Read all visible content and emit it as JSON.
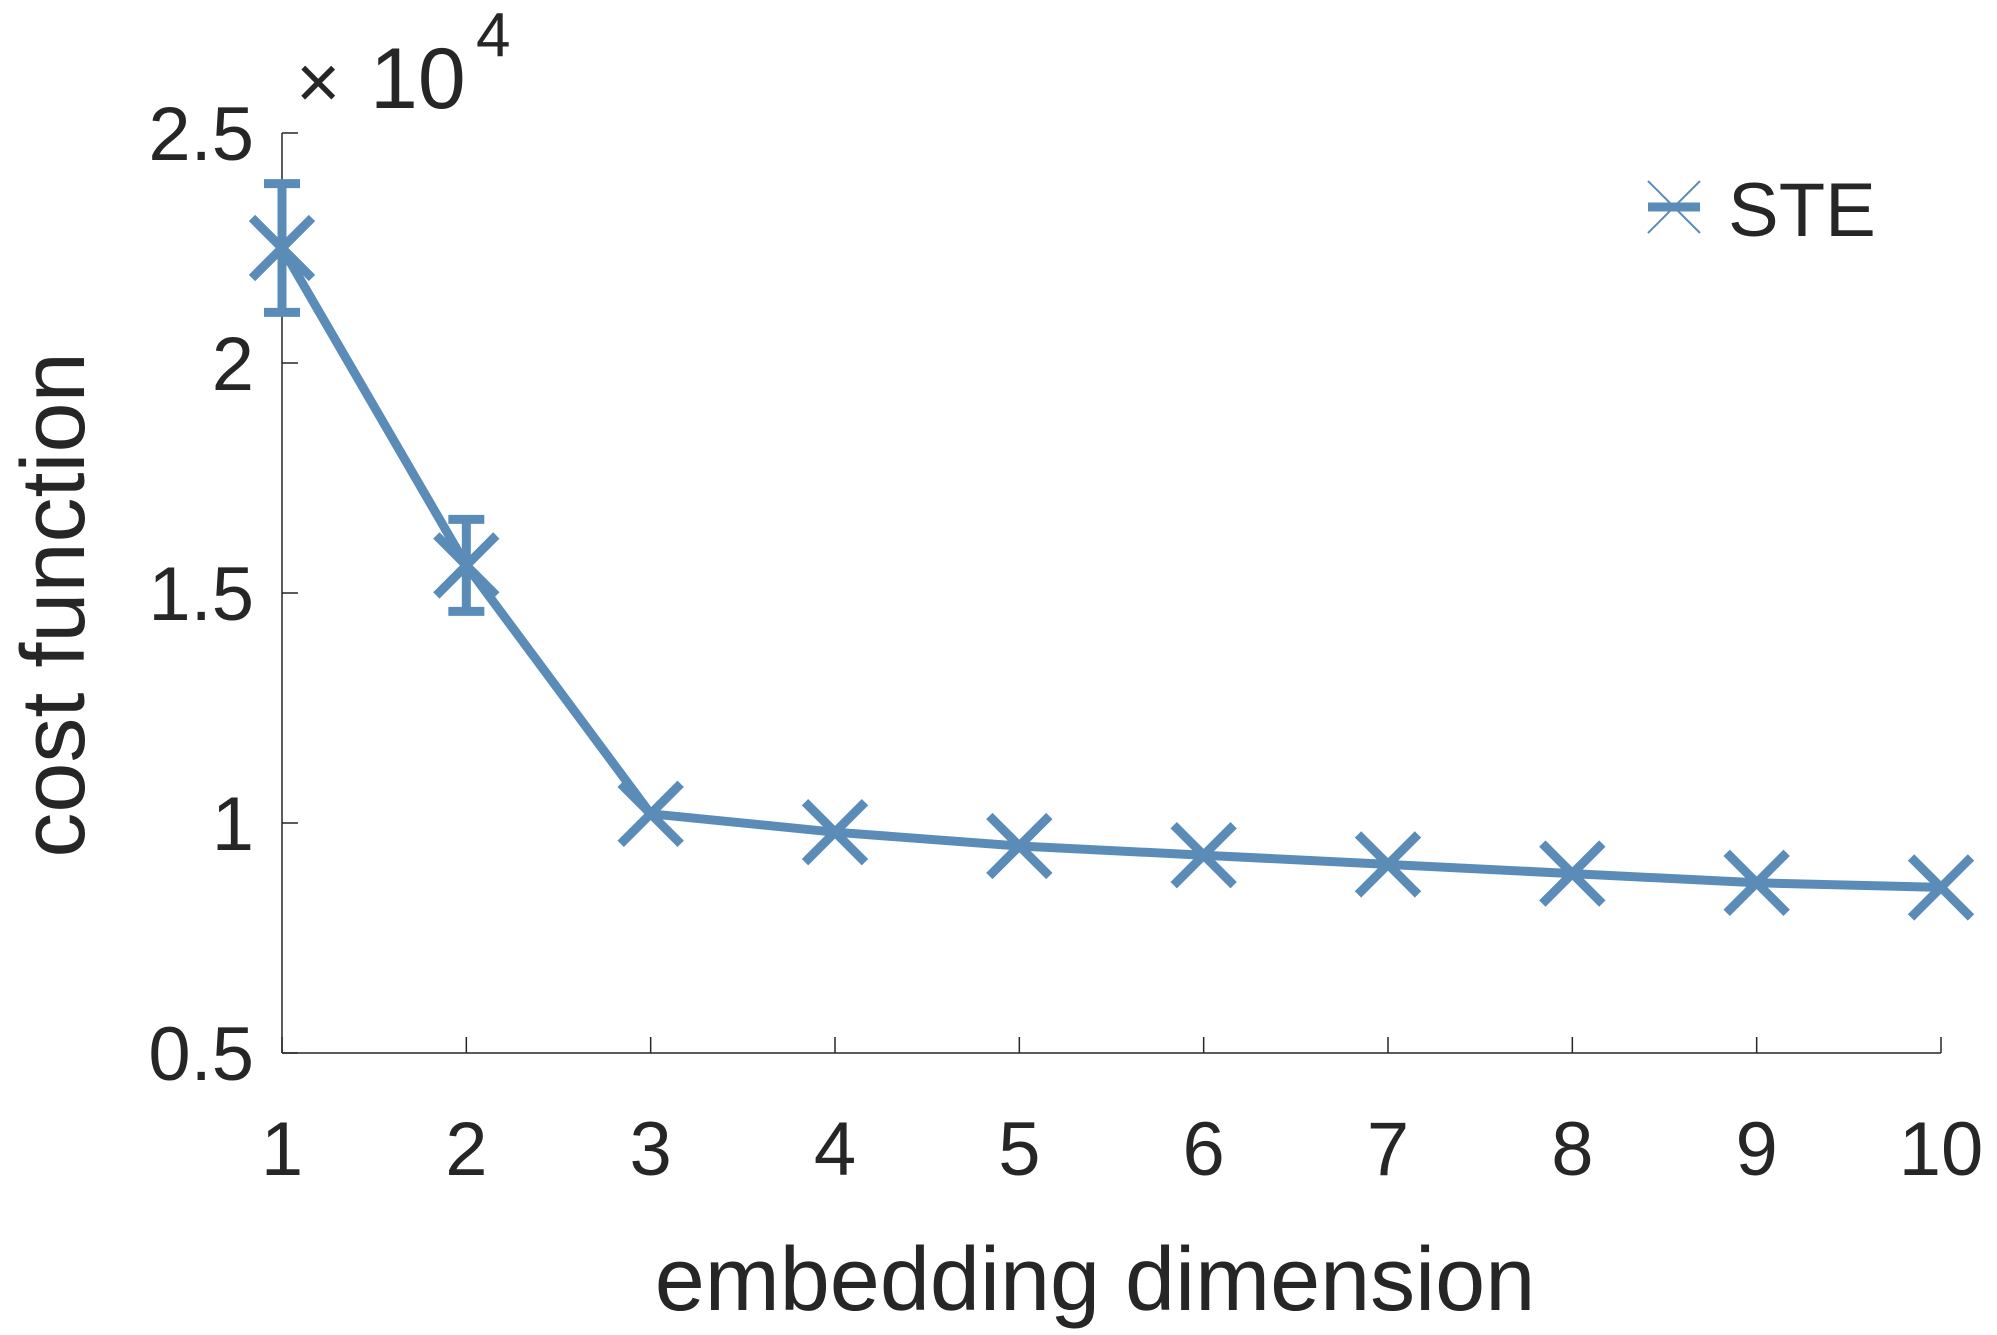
{
  "colors": {
    "series": "#5b8cb8",
    "axis": "#262626",
    "background": "#ffffff"
  },
  "chart_data": {
    "type": "line",
    "xlabel": "embedding dimension",
    "ylabel": "cost function",
    "y_multiplier_base": "10",
    "y_multiplier_exponent": "4",
    "x": [
      1,
      2,
      3,
      4,
      5,
      6,
      7,
      8,
      9,
      10
    ],
    "x_tick_labels": [
      "1",
      "2",
      "3",
      "4",
      "5",
      "6",
      "7",
      "8",
      "9",
      "10"
    ],
    "y_ticks": [
      0.5,
      1,
      1.5,
      2,
      2.5
    ],
    "y_tick_labels": [
      "0.5",
      "1",
      "1.5",
      "2",
      "2.5"
    ],
    "xlim": [
      1,
      10
    ],
    "ylim": [
      0.5,
      2.5
    ],
    "grid": false,
    "legend_position": "top-right",
    "series": [
      {
        "name": "STE",
        "marker": "x",
        "values": [
          2.25,
          1.56,
          1.02,
          0.98,
          0.95,
          0.93,
          0.91,
          0.89,
          0.87,
          0.86
        ],
        "error": [
          0.14,
          0.1,
          0.0,
          0.0,
          0.0,
          0.0,
          0.0,
          0.0,
          0.0,
          0.0
        ]
      }
    ]
  }
}
